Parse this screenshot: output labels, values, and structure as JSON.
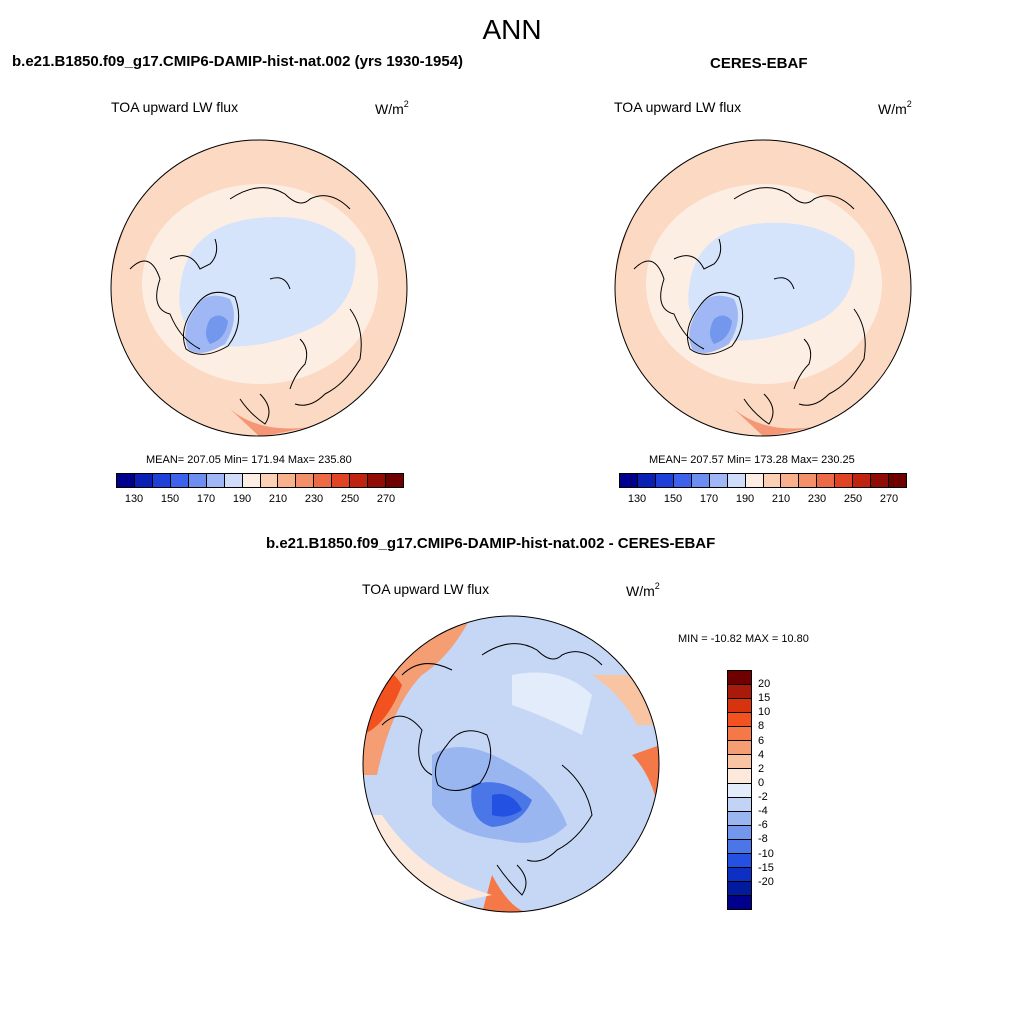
{
  "page": {
    "title": "ANN"
  },
  "panels": {
    "model": {
      "title": "b.e21.B1850.f09_g17.CMIP6-DAMIP-hist-nat.002 (yrs 1930-1954)",
      "variable": "TOA upward LW flux",
      "units": "W/m",
      "units_exp": "2",
      "stats": "MEAN= 207.05  Min= 171.94  Max= 235.80"
    },
    "obs": {
      "title": "CERES-EBAF",
      "variable": "TOA upward LW flux",
      "units": "W/m",
      "units_exp": "2",
      "stats": "MEAN= 207.57  Min= 173.28  Max= 230.25"
    },
    "diff": {
      "title": "b.e21.B1850.f09_g17.CMIP6-DAMIP-hist-nat.002 - CERES-EBAF",
      "variable": "TOA upward LW flux",
      "units": "W/m",
      "units_exp": "2",
      "stats": "MIN = -10.82 MAX =  10.80"
    }
  },
  "colorbars": {
    "abs": {
      "labels": [
        "130",
        "150",
        "170",
        "190",
        "210",
        "230",
        "250",
        "270"
      ],
      "colors": [
        "#00008c",
        "#0a1fb4",
        "#1f3fd9",
        "#3d63ec",
        "#6b8ef0",
        "#9fb7f4",
        "#cfdcfa",
        "#fdeee4",
        "#fbd0b5",
        "#f9b08c",
        "#f38f69",
        "#ec6a45",
        "#e04425",
        "#c02410",
        "#900d05",
        "#6e0000"
      ]
    },
    "diff": {
      "labels": [
        "20",
        "15",
        "10",
        "8",
        "6",
        "4",
        "2",
        "0",
        "-2",
        "-4",
        "-6",
        "-8",
        "-10",
        "-15",
        "-20"
      ],
      "colors": [
        "#6e0000",
        "#aa1a0a",
        "#d8330f",
        "#f2521f",
        "#f47848",
        "#f59e73",
        "#f8c4a2",
        "#fce9db",
        "#e3ecfa",
        "#c2d4f6",
        "#9ab6f1",
        "#7297ec",
        "#4a76e8",
        "#2352e3",
        "#0d2fc4",
        "#021a9c",
        "#00008c"
      ]
    }
  },
  "maps": {
    "model_fill": "#fce0cc",
    "obs_fill": "#fce4d2",
    "diff_fill": "#c6d7f6"
  }
}
